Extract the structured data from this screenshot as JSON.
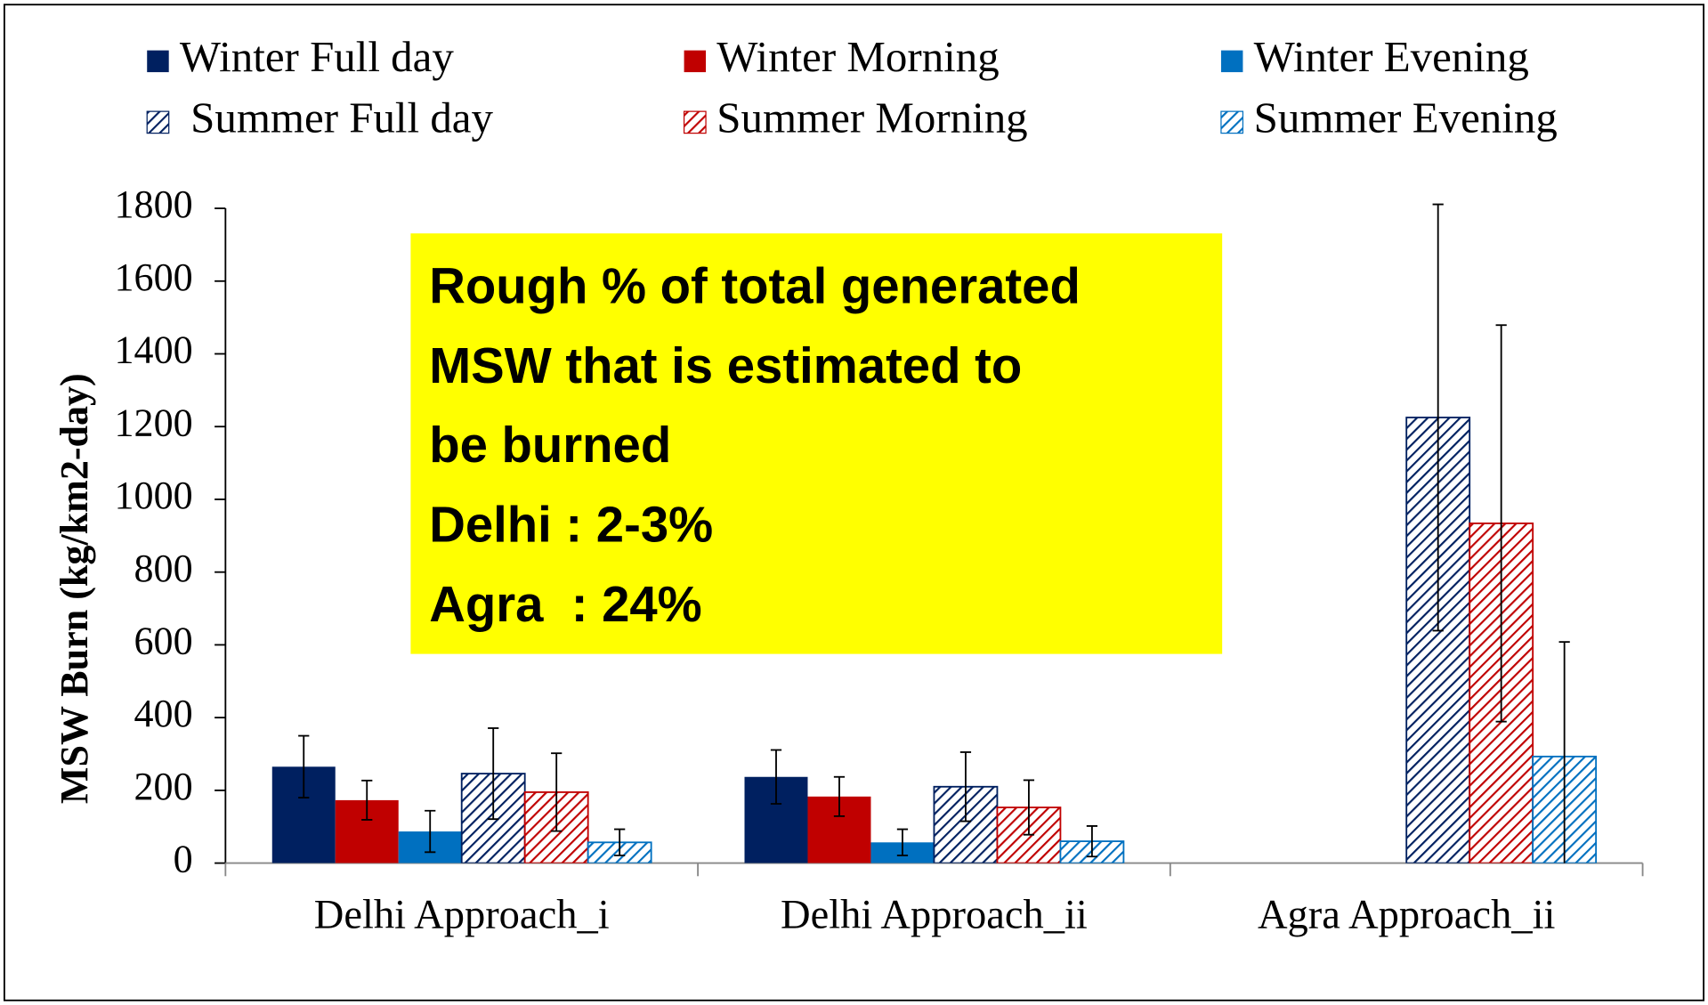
{
  "chart_data": {
    "type": "bar",
    "ylabel": "MSW Burn (kg/km2-day)",
    "categories": [
      "Delhi Approach_i",
      "Delhi Approach_ii",
      "Agra Approach_ii"
    ],
    "series": [
      {
        "name": "Winter Full day",
        "color": "#002060",
        "hatch": false,
        "values": [
          265,
          237,
          null
        ],
        "errors": [
          85,
          74,
          null
        ]
      },
      {
        "name": "Winter Morning",
        "color": "#c00000",
        "hatch": false,
        "values": [
          173,
          183,
          null
        ],
        "errors": [
          54,
          54,
          null
        ]
      },
      {
        "name": "Winter Evening",
        "color": "#0070c0",
        "hatch": false,
        "values": [
          87,
          57,
          null
        ],
        "errors": [
          57,
          36,
          null
        ]
      },
      {
        "name": " Summer Full day",
        "color": "#002060",
        "hatch": true,
        "values": [
          246,
          210,
          1225
        ],
        "errors": [
          125,
          95,
          586
        ]
      },
      {
        "name": "Summer Morning",
        "color": "#c00000",
        "hatch": true,
        "values": [
          195,
          153,
          934
        ],
        "errors": [
          107,
          75,
          545
        ]
      },
      {
        "name": "Summer Evening",
        "color": "#0070c0",
        "hatch": true,
        "values": [
          57,
          60,
          293
        ],
        "errors": [
          36,
          42,
          315
        ]
      }
    ],
    "ylim": [
      0,
      1800
    ],
    "yticks": [
      0,
      200,
      400,
      600,
      800,
      1000,
      1200,
      1400,
      1600,
      1800
    ],
    "annotation": {
      "color": "#ffff00",
      "lines": [
        "Rough % of total generated",
        "MSW that is estimated to",
        "be burned",
        "Delhi : 2-3%",
        "Agra  : 24%"
      ]
    }
  }
}
